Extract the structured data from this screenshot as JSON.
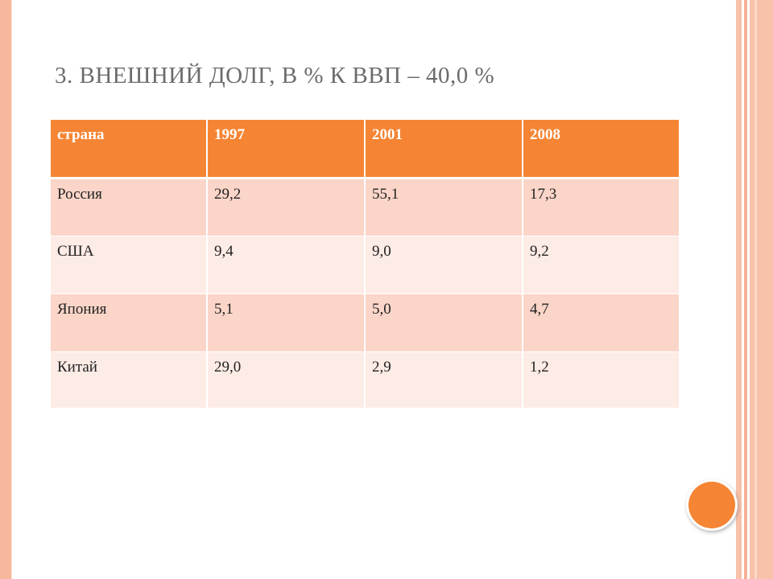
{
  "slide": {
    "title": "3. ВНЕШНИЙ ДОЛГ, В % К ВВП – 40,0 %",
    "colors": {
      "header_fill": "#f58534",
      "row_odd_fill": "#fad5c8",
      "row_even_fill": "#fdebe5",
      "border_stripe": "#f7b79c",
      "title_text": "#6b6b6b",
      "circle": "#f58534"
    }
  },
  "table": {
    "headers": [
      "страна",
      "1997",
      "2001",
      "2008"
    ],
    "rows": [
      [
        "Россия",
        "29,2",
        "55,1",
        "17,3"
      ],
      [
        "США",
        "9,4",
        "9,0",
        "9,2"
      ],
      [
        "Япония",
        "5,1",
        "5,0",
        "4,7"
      ],
      [
        "Китай",
        "29,0",
        "2,9",
        "1,2"
      ]
    ]
  },
  "decorations": {
    "circle_icon": "orange-circle-icon"
  }
}
